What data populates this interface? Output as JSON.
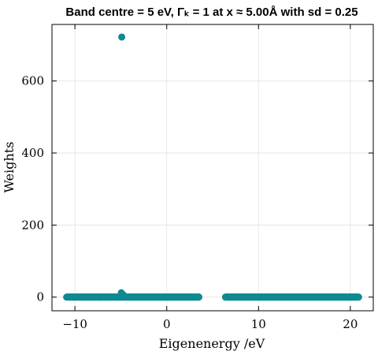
{
  "chart_data": {
    "type": "scatter",
    "title": "Band centre = 5 eV, Γₖ = 1 at x ≈ 5.00Å with sd = 0.25",
    "xlabel": "Eigenenergy /eV",
    "ylabel": "Weights",
    "xlim": [
      -12.5,
      22.5
    ],
    "ylim": [
      -38,
      757
    ],
    "xticks": [
      -10,
      0,
      10,
      20
    ],
    "yticks": [
      0,
      200,
      400,
      600
    ],
    "xtick_labels": [
      "−10",
      "0",
      "10",
      "20"
    ],
    "ytick_labels": [
      "0",
      "200",
      "400",
      "600"
    ],
    "grid": true,
    "marker_color": "#0e8a92",
    "series": [
      {
        "points": [
          {
            "x": -4.9,
            "y": 722
          },
          {
            "x": -4.95,
            "y": 12
          },
          {
            "x": -4.8,
            "y": 8
          },
          {
            "x": -4.6,
            "y": 3
          }
        ],
        "bands": [
          {
            "x_start": -10.9,
            "x_end": 3.5,
            "y": 0
          },
          {
            "x_start": 6.4,
            "x_end": 20.9,
            "y": 0
          }
        ],
        "band_step": 0.05
      }
    ]
  }
}
